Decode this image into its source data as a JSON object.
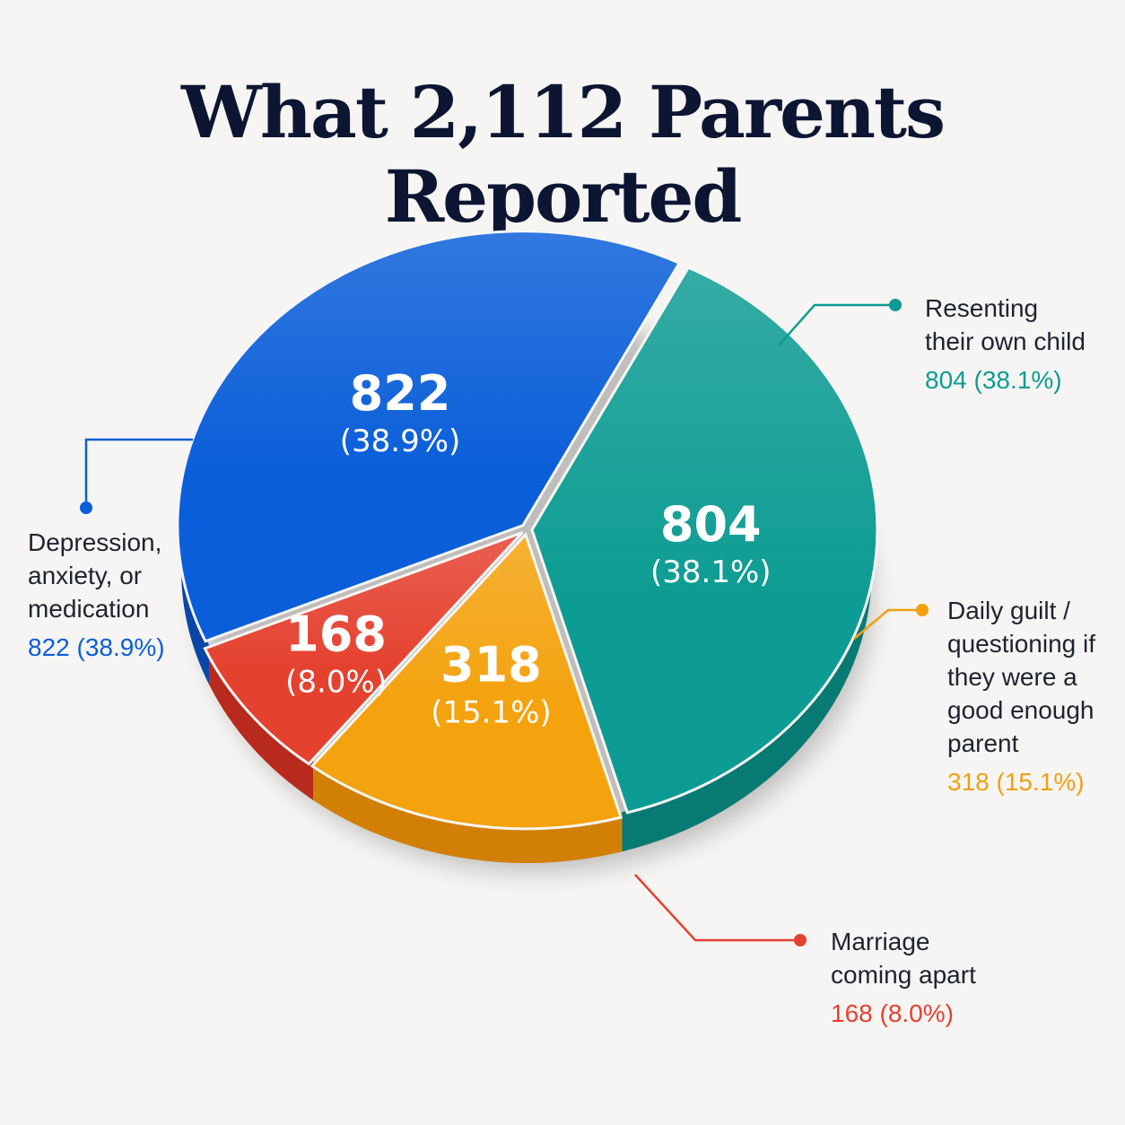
{
  "chart_data": {
    "type": "pie",
    "title": "What 2,112 Parents Reported",
    "slices": [
      {
        "key": "resenting",
        "label": "Resenting\ntheir own child",
        "value": 804,
        "value_text": "804",
        "percent_text": "(38.1%)",
        "legend_value": "804 (38.1%)",
        "color": "#0d9c93",
        "side_color": "#077a73"
      },
      {
        "key": "guilt",
        "label": "Daily guilt /\nquestioning if\nthey were a\ngood enough\nparent",
        "value": 318,
        "value_text": "318",
        "percent_text": "(15.1%)",
        "legend_value": "318 (15.1%)",
        "color": "#f4a20d",
        "side_color": "#d27f06"
      },
      {
        "key": "marriage",
        "label": "Marriage\ncoming apart",
        "value": 168,
        "value_text": "168",
        "percent_text": "(8.0%)",
        "legend_value": "168 (8.0%)",
        "color": "#e5412f",
        "side_color": "#b82a1d"
      },
      {
        "key": "depression",
        "label": "Depression,\nanxiety, or\nmedication",
        "value": 822,
        "value_text": "822",
        "percent_text": "(38.9%)",
        "legend_value": "822 (38.9%)",
        "color": "#0a5ed9",
        "side_color": "#0a46a8"
      }
    ]
  }
}
